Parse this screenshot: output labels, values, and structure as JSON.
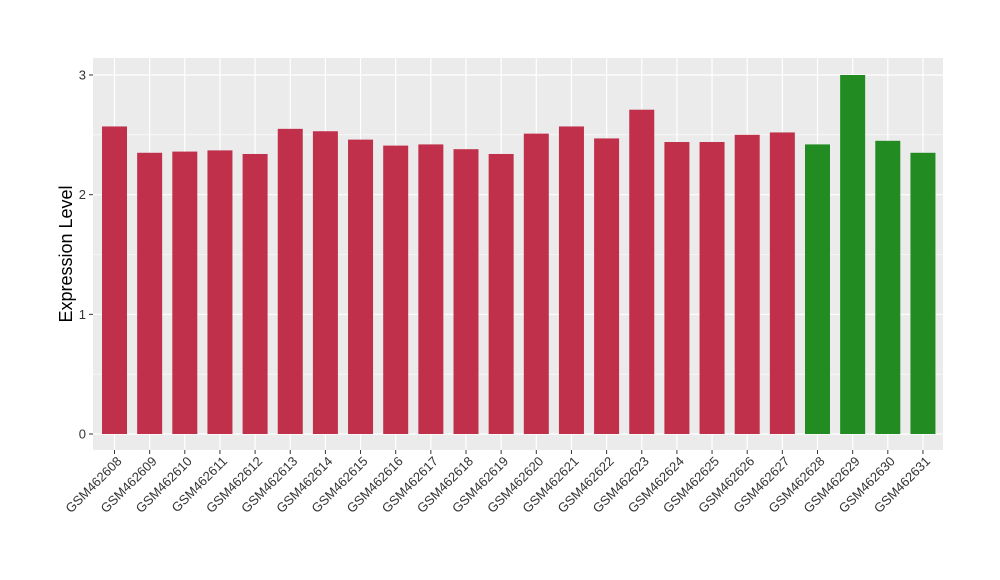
{
  "chart_data": {
    "type": "bar",
    "title": "",
    "xlabel": "",
    "ylabel": "Expression Level",
    "ylim": [
      0,
      3.0
    ],
    "yticks": [
      0,
      1,
      2,
      3
    ],
    "grid": true,
    "categories": [
      "GSM462608",
      "GSM462609",
      "GSM462610",
      "GSM462611",
      "GSM462612",
      "GSM462613",
      "GSM462614",
      "GSM462615",
      "GSM462616",
      "GSM462617",
      "GSM462618",
      "GSM462619",
      "GSM462620",
      "GSM462621",
      "GSM462622",
      "GSM462623",
      "GSM462624",
      "GSM462625",
      "GSM462626",
      "GSM462627",
      "GSM462628",
      "GSM462629",
      "GSM462630",
      "GSM462631"
    ],
    "values": [
      2.57,
      2.35,
      2.36,
      2.37,
      2.34,
      2.55,
      2.53,
      2.46,
      2.41,
      2.42,
      2.38,
      2.34,
      2.51,
      2.57,
      2.47,
      2.71,
      2.44,
      2.44,
      2.5,
      2.52,
      2.42,
      3.0,
      2.45,
      2.35
    ],
    "bar_colors": [
      "#c0304a",
      "#c0304a",
      "#c0304a",
      "#c0304a",
      "#c0304a",
      "#c0304a",
      "#c0304a",
      "#c0304a",
      "#c0304a",
      "#c0304a",
      "#c0304a",
      "#c0304a",
      "#c0304a",
      "#c0304a",
      "#c0304a",
      "#c0304a",
      "#c0304a",
      "#c0304a",
      "#c0304a",
      "#c0304a",
      "#228b22",
      "#228b22",
      "#228b22",
      "#228b22"
    ],
    "panel_background": "#ebebeb",
    "grid_color": "#ffffff"
  }
}
